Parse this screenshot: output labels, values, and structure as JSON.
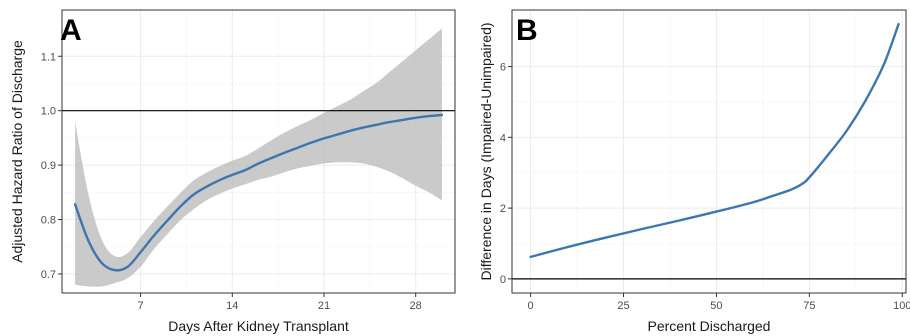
{
  "chart_data": [
    {
      "type": "line",
      "panel_label": "A",
      "xlabel": "Days After Kidney Transplant",
      "ylabel": "Adjusted Hazard Ratio of Discharge",
      "xlim": [
        1,
        31
      ],
      "ylim": [
        0.665,
        1.185
      ],
      "x_ticks": [
        7,
        14,
        21,
        28
      ],
      "x_tick_labels": [
        "7",
        "14",
        "21",
        "28"
      ],
      "y_ticks": [
        0.7,
        0.8,
        0.9,
        1.0,
        1.1
      ],
      "y_tick_labels": [
        "0.7",
        "0.8",
        "0.9",
        "1.0",
        "1.1"
      ],
      "reference_line_y": 1.0,
      "grid": true,
      "colors": {
        "line": "#3c76b0",
        "ribbon": "#bdbdbd",
        "reference": "#000000",
        "panel_border": "#333333",
        "grid": "#ebebeb"
      },
      "series": [
        {
          "x": [
            2,
            3,
            4,
            5,
            6,
            7,
            8,
            9,
            10,
            11,
            12,
            13,
            14,
            15,
            16,
            17,
            18,
            19,
            20,
            21,
            22,
            23,
            24,
            25,
            26,
            27,
            28,
            29,
            30
          ],
          "y": [
            0.828,
            0.762,
            0.721,
            0.707,
            0.713,
            0.74,
            0.77,
            0.797,
            0.823,
            0.845,
            0.86,
            0.872,
            0.882,
            0.891,
            0.903,
            0.913,
            0.923,
            0.932,
            0.941,
            0.949,
            0.956,
            0.963,
            0.969,
            0.974,
            0.979,
            0.983,
            0.987,
            0.99,
            0.992
          ],
          "lower": [
            0.68,
            0.677,
            0.677,
            0.683,
            0.692,
            0.713,
            0.745,
            0.772,
            0.798,
            0.818,
            0.835,
            0.847,
            0.857,
            0.865,
            0.873,
            0.879,
            0.887,
            0.894,
            0.899,
            0.903,
            0.905,
            0.905,
            0.903,
            0.897,
            0.888,
            0.876,
            0.862,
            0.85,
            0.835
          ],
          "upper": [
            0.98,
            0.848,
            0.765,
            0.733,
            0.738,
            0.768,
            0.797,
            0.823,
            0.848,
            0.871,
            0.886,
            0.898,
            0.908,
            0.917,
            0.931,
            0.946,
            0.96,
            0.972,
            0.983,
            0.996,
            1.008,
            1.02,
            1.036,
            1.051,
            1.071,
            1.091,
            1.111,
            1.131,
            1.151
          ]
        }
      ]
    },
    {
      "type": "line",
      "panel_label": "B",
      "xlabel": "Percent Discharged",
      "ylabel": "Difference in Days (Impaired-Unimpaired)",
      "xlim": [
        -5,
        101
      ],
      "ylim": [
        -0.4,
        7.6
      ],
      "x_ticks": [
        0,
        25,
        50,
        75,
        100
      ],
      "x_tick_labels": [
        "0",
        "25",
        "50",
        "75",
        "100"
      ],
      "y_ticks": [
        0,
        2,
        4,
        6
      ],
      "y_tick_labels": [
        "0",
        "2",
        "4",
        "6"
      ],
      "reference_line_y": 0,
      "grid": true,
      "colors": {
        "line": "#3c76b0",
        "reference": "#000000",
        "panel_border": "#333333",
        "grid": "#ebebeb"
      },
      "series": [
        {
          "x": [
            0,
            10,
            20,
            30,
            40,
            50,
            60,
            65,
            70,
            73,
            75,
            80,
            85,
            90,
            95,
            99
          ],
          "y": [
            0.62,
            0.9,
            1.16,
            1.41,
            1.65,
            1.9,
            2.17,
            2.34,
            2.52,
            2.68,
            2.87,
            3.5,
            4.18,
            5.02,
            6.05,
            7.2
          ]
        }
      ]
    }
  ]
}
